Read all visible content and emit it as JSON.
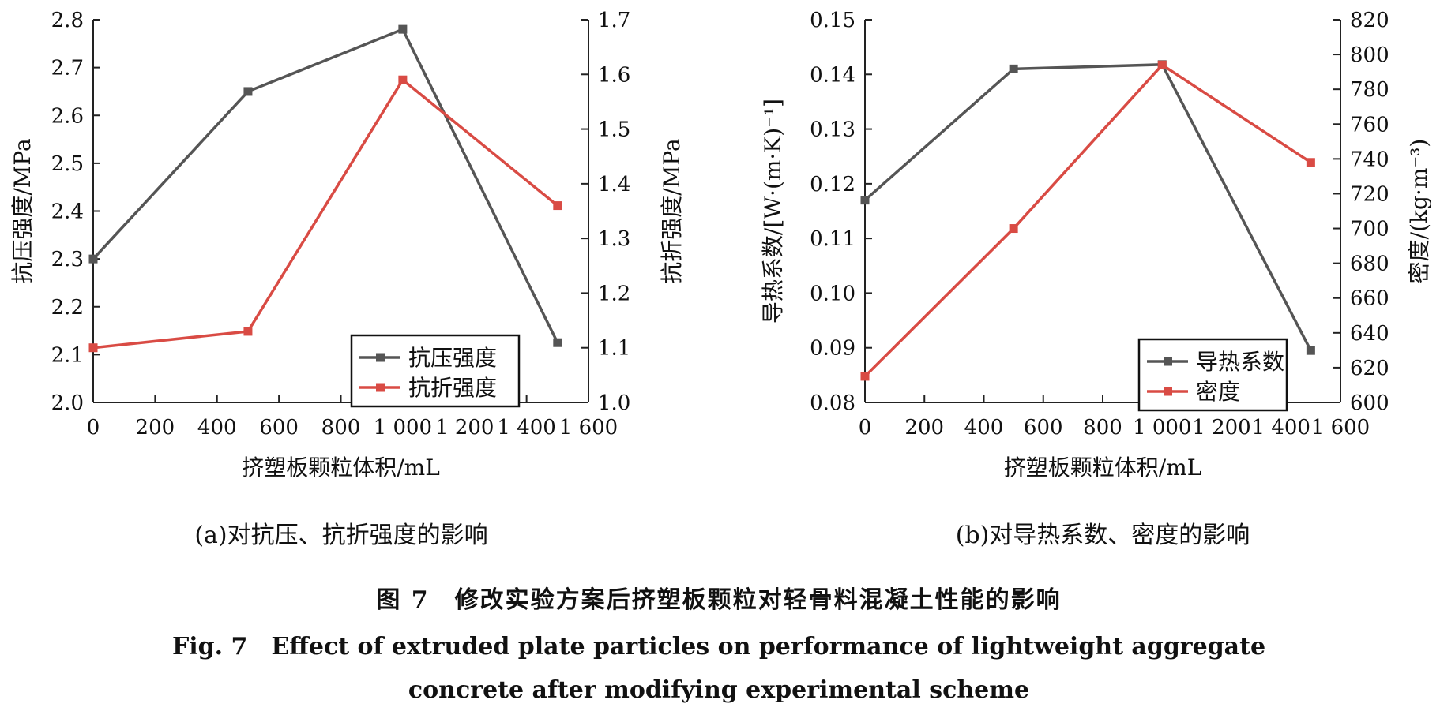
{
  "chart_data": [
    {
      "type": "line",
      "subcaption": "(a)对抗压、抗折强度的影响",
      "xlabel": "挤塑板颗粒体积/mL",
      "x_ticks": [
        "0",
        "200",
        "400",
        "600",
        "800",
        "1 000",
        "1 200",
        "1 400",
        "1 600"
      ],
      "xlim": [
        0,
        1600
      ],
      "ylabel_left": "抗压强度/MPa",
      "ylim_left": [
        2.0,
        2.8
      ],
      "yticks_left": [
        "2.0",
        "2.1",
        "2.2",
        "2.3",
        "2.4",
        "2.5",
        "2.6",
        "2.7",
        "2.8"
      ],
      "ylabel_right": "抗折强度/MPa",
      "ylim_right": [
        1.0,
        1.7
      ],
      "yticks_right": [
        "1.0",
        "1.1",
        "1.2",
        "1.3",
        "1.4",
        "1.5",
        "1.6",
        "1.7"
      ],
      "legend_position": "bottom-right",
      "series": [
        {
          "name": "抗压强度",
          "axis": "left",
          "color": "#555555",
          "x": [
            0,
            500,
            1000,
            1500
          ],
          "y": [
            2.3,
            2.65,
            2.78,
            2.125
          ]
        },
        {
          "name": "抗折强度",
          "axis": "right",
          "color": "#d94b44",
          "x": [
            0,
            500,
            1000,
            1500
          ],
          "y": [
            1.1,
            1.13,
            1.59,
            1.36
          ]
        }
      ]
    },
    {
      "type": "line",
      "subcaption": "(b)对导热系数、密度的影响",
      "xlabel": "挤塑板颗粒体积/mL",
      "x_ticks": [
        "0",
        "200",
        "400",
        "600",
        "800",
        "1 000",
        "1 200",
        "1 400",
        "1 600"
      ],
      "xlim": [
        0,
        1600
      ],
      "ylabel_left": "导热系数/[W·(m·K)⁻¹]",
      "ylim_left": [
        0.08,
        0.15
      ],
      "yticks_left": [
        "0.08",
        "0.09",
        "0.10",
        "0.11",
        "0.12",
        "0.13",
        "0.14",
        "0.15"
      ],
      "ylabel_right": "密度/(kg·m⁻³)",
      "ylim_right": [
        600,
        820
      ],
      "yticks_right": [
        "600",
        "620",
        "640",
        "660",
        "680",
        "700",
        "720",
        "740",
        "760",
        "780",
        "800",
        "820"
      ],
      "legend_position": "bottom-right",
      "series": [
        {
          "name": "导热系数",
          "axis": "left",
          "color": "#555555",
          "x": [
            0,
            500,
            1000,
            1500
          ],
          "y": [
            0.117,
            0.141,
            0.1418,
            0.0895
          ]
        },
        {
          "name": "密度",
          "axis": "right",
          "color": "#d94b44",
          "x": [
            0,
            500,
            1000,
            1500
          ],
          "y": [
            615,
            700,
            794,
            738
          ]
        }
      ]
    }
  ],
  "figure": {
    "title_cn": "图 7　修改实验方案后挤塑板颗粒对轻骨料混凝土性能的影响",
    "title_en_line1": "Fig. 7　Effect of extruded plate particles on performance of lightweight aggregate",
    "title_en_line2": "concrete after modifying experimental scheme"
  }
}
